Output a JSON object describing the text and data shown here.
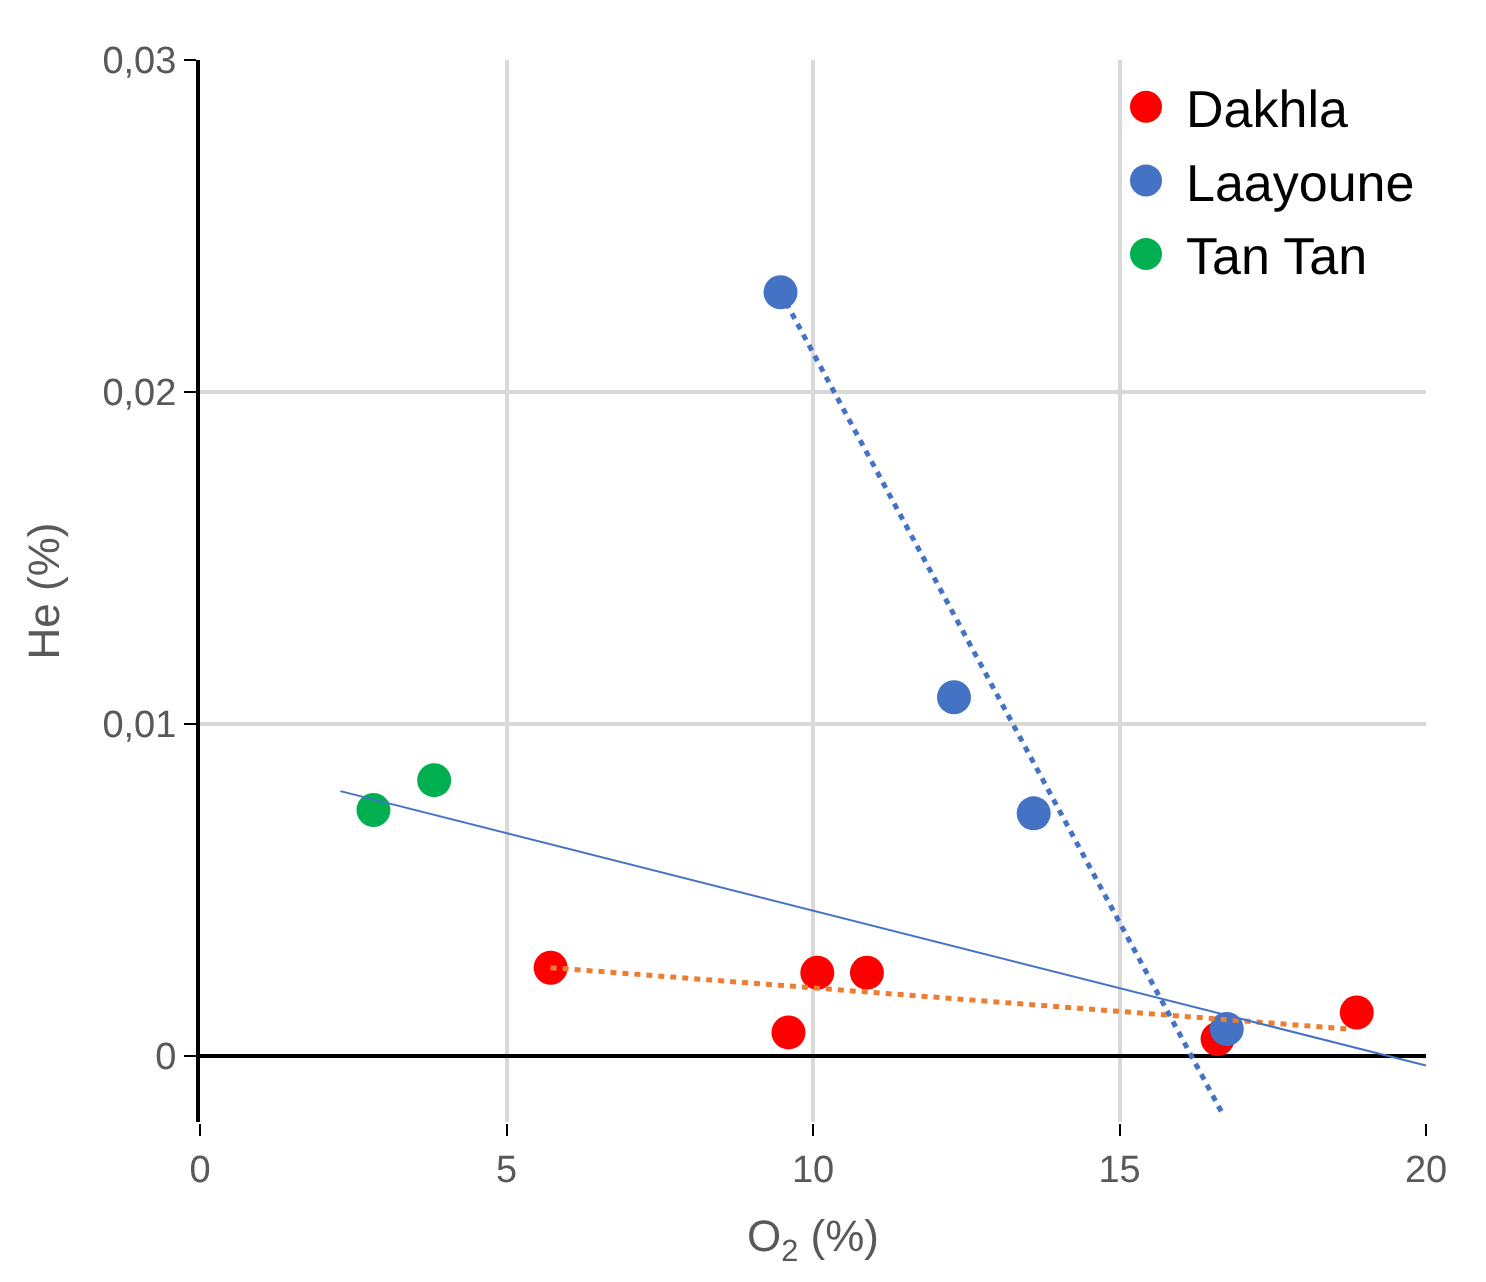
{
  "chart_data": {
    "type": "scatter",
    "xlabel": "O$_{2}$ (%)",
    "ylabel": "He (%)",
    "xlim": [
      0,
      20
    ],
    "xticks": [
      0,
      5,
      10,
      15,
      20
    ],
    "ylim": [
      -0.002,
      0.03
    ],
    "yticks": [
      0,
      {
        "value": 0.01,
        "label": "0,01"
      },
      {
        "value": 0.02,
        "label": "0,02"
      },
      {
        "value": 0.03,
        "label": "0,03"
      }
    ],
    "grid": true,
    "legend": "top right",
    "marker": "circle",
    "series": [
      {
        "name": "Dakhla",
        "color": "#ff0000",
        "x": [
          5.72,
          9.6,
          10.07,
          10.88,
          16.6,
          18.87
        ],
        "values": [
          0.00265,
          0.0007,
          0.0025,
          0.0025,
          0.0005,
          0.0013
        ]
      },
      {
        "name": "Laayoune",
        "color": "#4472c4",
        "x": [
          9.47,
          12.3,
          13.6,
          16.75
        ],
        "values": [
          0.023,
          0.0108,
          0.0073,
          0.0008
        ]
      },
      {
        "name": "Tan Tan",
        "color": "#00b050",
        "x": [
          2.83,
          3.82
        ],
        "values": [
          0.0074,
          0.0083
        ]
      },
      {
        "type": "line",
        "marker": "none",
        "color": "#ed7d31",
        "line_style": "dotted",
        "x": [
          5.72,
          18.75
        ],
        "values": [
          0.00265,
          0.0008
        ]
      },
      {
        "type": "line",
        "marker": "none",
        "color": "#4472c4",
        "line_style": "dotted",
        "x": [
          9.47,
          16.68
        ],
        "values": [
          0.023,
          -0.00175
        ]
      },
      {
        "type": "line",
        "marker": "none",
        "color": "#4472c4",
        "line_style": "solid",
        "x": [
          2.29,
          20
        ],
        "values": [
          0.00797,
          -0.0003
        ]
      }
    ]
  }
}
